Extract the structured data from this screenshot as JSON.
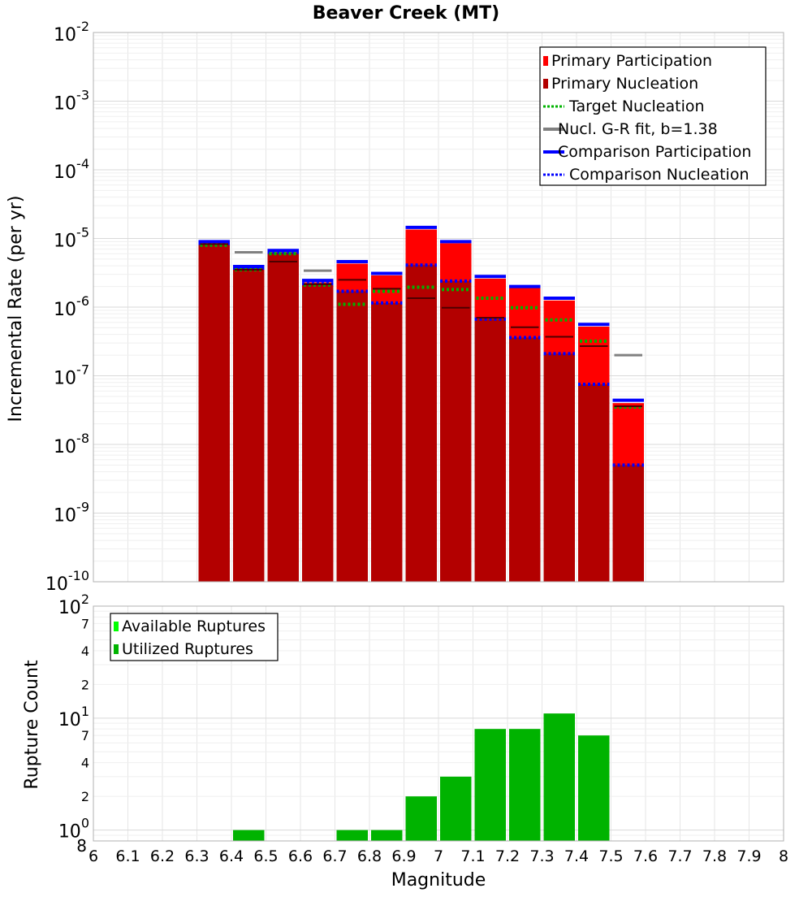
{
  "chart_data": [
    {
      "type": "bar",
      "title": "Beaver Creek (MT)",
      "xlabel": "",
      "ylabel": "Incremental Rate (per yr)",
      "yscale": "log",
      "ylim": [
        1e-10,
        0.01
      ],
      "xlim": [
        6,
        8
      ],
      "grid": true,
      "legend_position": "top-right",
      "y_ticks": [
        {
          "base": "10",
          "exp": "-2"
        },
        {
          "base": "10",
          "exp": "-3"
        },
        {
          "base": "10",
          "exp": "-4"
        },
        {
          "base": "10",
          "exp": "-5"
        },
        {
          "base": "10",
          "exp": "-6"
        },
        {
          "base": "10",
          "exp": "-7"
        },
        {
          "base": "10",
          "exp": "-8"
        },
        {
          "base": "10",
          "exp": "-9"
        },
        {
          "base": "10",
          "exp": "-10"
        }
      ],
      "legend": [
        {
          "label": "Primary Participation",
          "kind": "box",
          "color": "#ff0000"
        },
        {
          "label": "Primary Nucleation",
          "kind": "box",
          "color": "#b30000"
        },
        {
          "label": "Target Nucleation",
          "kind": "dotted",
          "color": "#00b300"
        },
        {
          "label": "Nucl. G-R fit, b=1.38",
          "kind": "solid",
          "color": "#808080"
        },
        {
          "label": "Comparison Participation",
          "kind": "solid",
          "color": "#0000ff"
        },
        {
          "label": "Comparison Nucleation",
          "kind": "dotted",
          "color": "#0000ff"
        }
      ],
      "bin_width": 0.1,
      "x": [
        6.35,
        6.45,
        6.55,
        6.65,
        6.75,
        6.85,
        6.95,
        7.05,
        7.15,
        7.25,
        7.35,
        7.45,
        7.55
      ],
      "primary_participation": [
        8.5e-06,
        3.7e-06,
        6.3e-06,
        2.3e-06,
        4.3e-06,
        2.9e-06,
        1.35e-05,
        8.5e-06,
        2.6e-06,
        1.9e-06,
        1.25e-06,
        5.2e-07,
        4e-08
      ],
      "primary_nucleation": [
        8.5e-06,
        3.7e-06,
        6.3e-06,
        2.2e-06,
        1.7e-06,
        1.15e-06,
        4.1e-06,
        2.4e-06,
        6.7e-07,
        3.6e-07,
        2.1e-07,
        7.5e-08,
        5e-09
      ],
      "comparison_participation": [
        9e-06,
        3.9e-06,
        6.7e-06,
        2.45e-06,
        4.6e-06,
        3.1e-06,
        1.45e-05,
        9e-06,
        2.8e-06,
        2e-06,
        1.35e-06,
        5.6e-07,
        4.4e-08
      ],
      "comparison_nucleation": [
        8.5e-06,
        3.7e-06,
        6.3e-06,
        2.2e-06,
        1.7e-06,
        1.15e-06,
        4.1e-06,
        2.4e-06,
        6.7e-07,
        3.6e-07,
        2.1e-07,
        7.5e-08,
        5e-09
      ],
      "target_nucleation": [
        8e-06,
        3.5e-06,
        6e-06,
        2.1e-06,
        1.1e-06,
        1.7e-06,
        1.95e-06,
        1.8e-06,
        1.35e-06,
        9.8e-07,
        6.5e-07,
        3.2e-07,
        3.5e-08
      ],
      "gr_fit": [
        8.3e-06,
        6.3e-06,
        4.6e-06,
        3.4e-06,
        2.5e-06,
        1.85e-06,
        1.35e-06,
        9.8e-07,
        7e-07,
        5.1e-07,
        3.7e-07,
        2.7e-07,
        2e-07
      ],
      "gr_fit_b": 1.38,
      "nucleation_marker": [
        8.3e-06,
        3.5e-06,
        4.6e-06,
        2.15e-06,
        2.5e-06,
        1.85e-06,
        1.35e-06,
        9.8e-07,
        7e-07,
        5.1e-07,
        3.7e-07,
        2.7e-07,
        3.6e-08
      ]
    },
    {
      "type": "bar",
      "title": "",
      "xlabel": "Magnitude",
      "ylabel": "Rupture Count",
      "yscale": "log",
      "ylim": [
        0.8,
        100
      ],
      "xlim": [
        6,
        8
      ],
      "grid": true,
      "legend_position": "top-left",
      "y_ticks": [
        {
          "value": 100,
          "base": "10",
          "exp": "2"
        },
        {
          "value": 70,
          "base": "7",
          "exp": ""
        },
        {
          "value": 40,
          "base": "4",
          "exp": ""
        },
        {
          "value": 20,
          "base": "2",
          "exp": ""
        },
        {
          "value": 10,
          "base": "10",
          "exp": "1"
        },
        {
          "value": 7,
          "base": "7",
          "exp": ""
        },
        {
          "value": 4,
          "base": "4",
          "exp": ""
        },
        {
          "value": 2,
          "base": "2",
          "exp": ""
        },
        {
          "value": 1,
          "base": "10",
          "exp": "0"
        },
        {
          "value": 0.8,
          "base": "8",
          "exp": ""
        }
      ],
      "x_ticks": [
        "6",
        "6.1",
        "6.2",
        "6.3",
        "6.4",
        "6.5",
        "6.6",
        "6.7",
        "6.8",
        "6.9",
        "7",
        "7.1",
        "7.2",
        "7.3",
        "7.4",
        "7.5",
        "7.6",
        "7.7",
        "7.8",
        "7.9",
        "8"
      ],
      "legend": [
        {
          "label": "Available Ruptures",
          "kind": "box",
          "color": "#00ff00"
        },
        {
          "label": "Utilized Ruptures",
          "kind": "box",
          "color": "#00b300"
        }
      ],
      "bin_width": 0.1,
      "x": [
        6.45,
        6.75,
        6.85,
        6.95,
        7.05,
        7.15,
        7.25,
        7.35,
        7.45
      ],
      "values": [
        1,
        1,
        1,
        2,
        3,
        8,
        8,
        11,
        7
      ]
    }
  ]
}
